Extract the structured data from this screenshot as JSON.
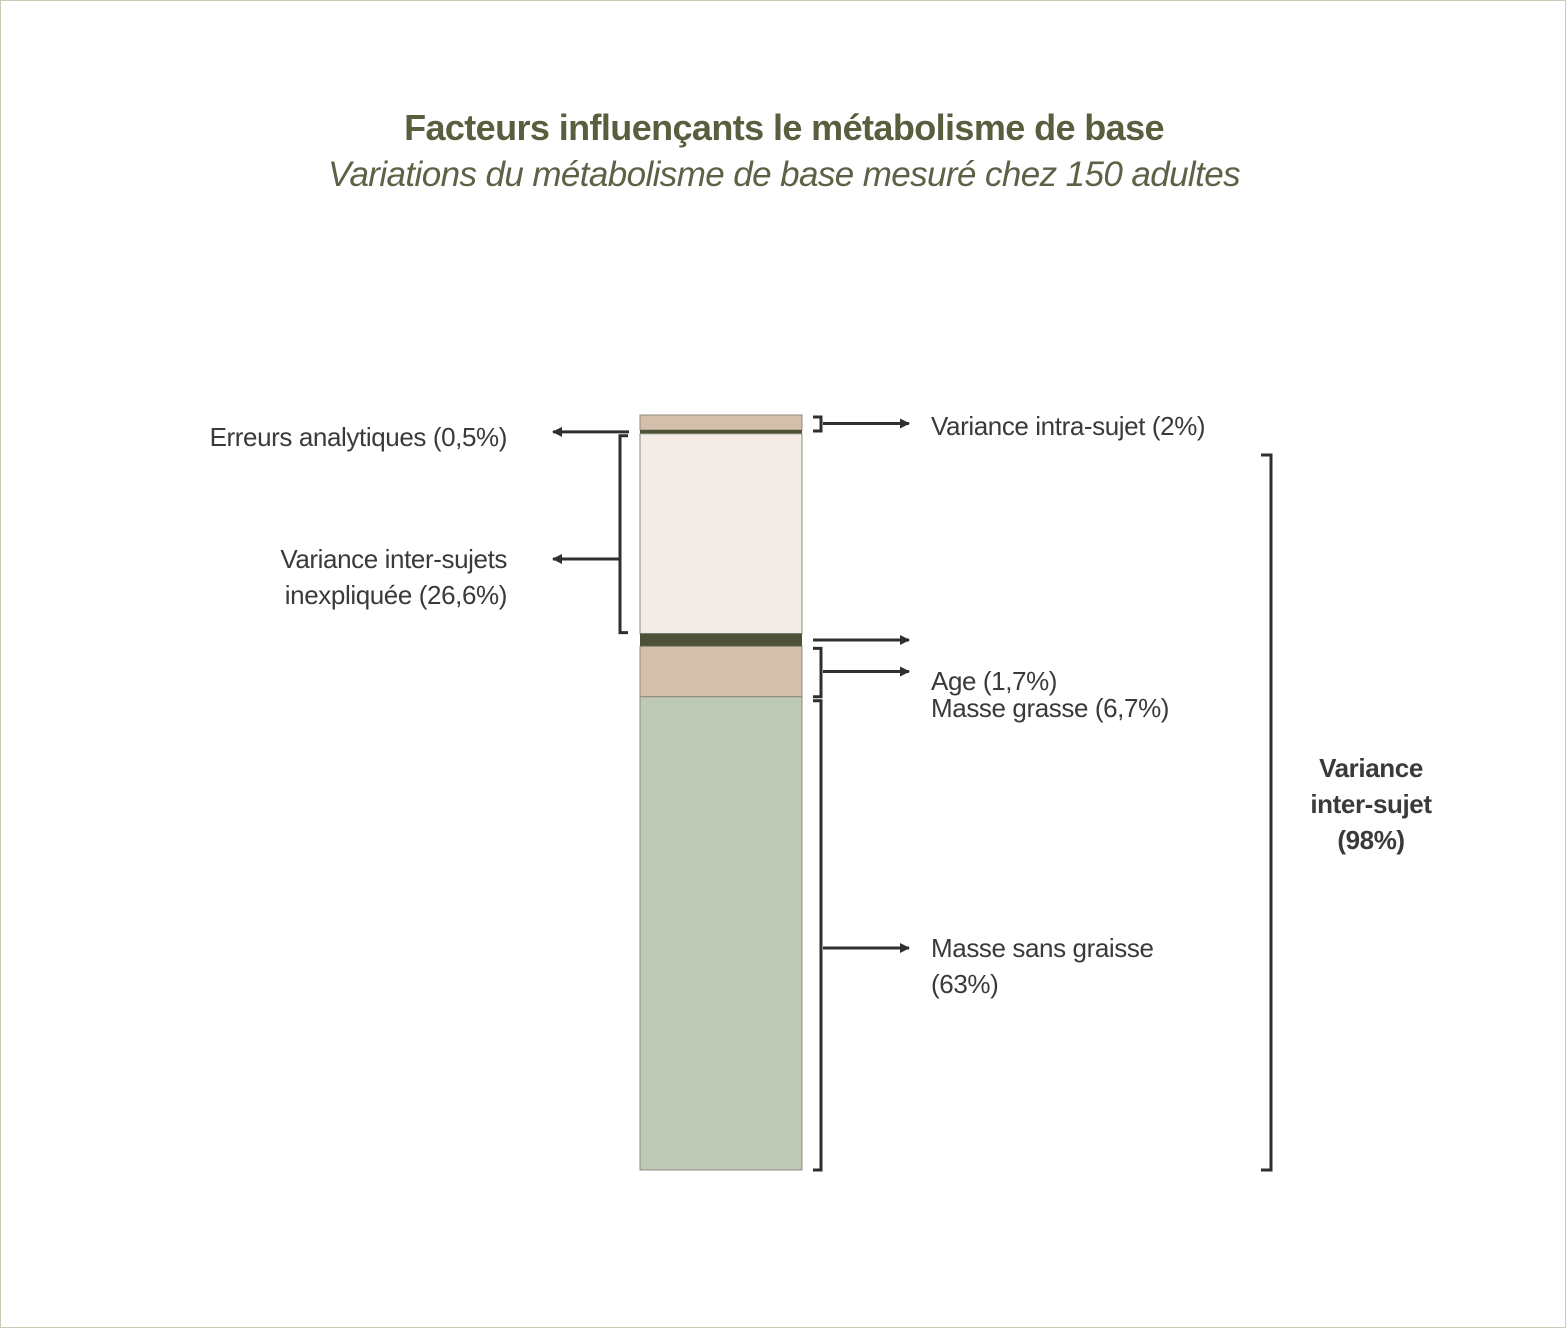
{
  "colors": {
    "title": "#5b5d3f",
    "subtitle": "#5f6147",
    "label": "#3a3a3a",
    "bracket": "#2f2f2f",
    "segment_outline": "#8c8c78"
  },
  "chart_data": {
    "type": "bar",
    "orientation": "vertical-stacked",
    "title": "Facteurs influençants le métabolisme de base",
    "subtitle": "Variations du métabolisme de base mesuré chez 150 adultes",
    "total": 100,
    "segments": [
      {
        "key": "intra",
        "label": "Variance intra-sujet (2%)",
        "value": 2,
        "color": "#d4bfaa",
        "side": "right"
      },
      {
        "key": "erreurs",
        "label": "Erreurs analytiques (0,5%)",
        "value": 0.5,
        "color": "#4d5138",
        "side": "left"
      },
      {
        "key": "inexpliquee",
        "label": "Variance inter-sujets inexpliquée (26,6%)",
        "lines": [
          "Variance inter-sujets",
          "inexpliquée (26,6%)"
        ],
        "value": 26.6,
        "color": "#f3ece6",
        "side": "left"
      },
      {
        "key": "age",
        "label": "Age (1,7%)",
        "value": 1.7,
        "color": "#4d5138",
        "side": "right"
      },
      {
        "key": "masse_grasse",
        "label": "Masse grasse (6,7%)",
        "value": 6.7,
        "color": "#d4bfaa",
        "side": "right"
      },
      {
        "key": "masse_sans_graisse",
        "label": "Masse sans graisse (63%)",
        "lines": [
          "Masse sans graisse",
          "(63%)"
        ],
        "value": 63,
        "color": "#bdc8b6",
        "side": "right"
      }
    ],
    "group_bracket": {
      "label_lines": [
        "Variance",
        "inter-sujet",
        "(98%)"
      ],
      "value": 98
    }
  }
}
